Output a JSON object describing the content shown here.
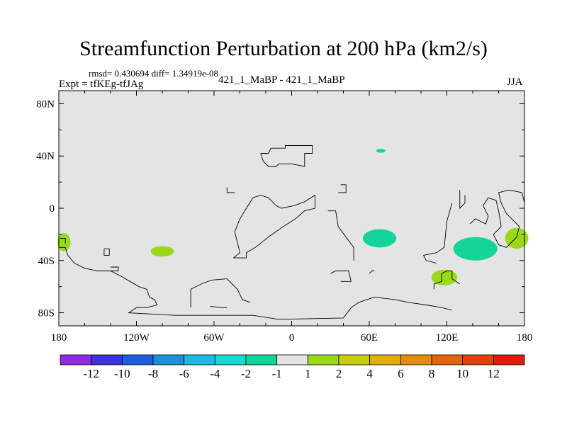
{
  "chart_data": {
    "type": "heatmap",
    "title": "Streamfunction Perturbation at 200 hPa (km2/s)",
    "stats_line": "rmsd= 0.430694 diff= 1.34919e-08",
    "experiment": "Expt = tfKEg-tfJAg",
    "center_label": "421_1_MaBP - 421_1_MaBP",
    "season": "JJA",
    "xlim": [
      -180,
      180
    ],
    "ylim": [
      -90,
      90
    ],
    "x_ticks": [
      {
        "value": -180,
        "label": "180"
      },
      {
        "value": -120,
        "label": "120W"
      },
      {
        "value": -60,
        "label": "60W"
      },
      {
        "value": 0,
        "label": "0"
      },
      {
        "value": 60,
        "label": "60E"
      },
      {
        "value": 120,
        "label": "120E"
      },
      {
        "value": 180,
        "label": "180"
      }
    ],
    "y_ticks": [
      {
        "value": 80,
        "label": "80N"
      },
      {
        "value": 40,
        "label": "40N"
      },
      {
        "value": 0,
        "label": "0"
      },
      {
        "value": -40,
        "label": "40S"
      },
      {
        "value": -80,
        "label": "80S"
      }
    ],
    "colorbar": {
      "colors": [
        "#8f2be0",
        "#3c33dc",
        "#1b5fde",
        "#1d8fdf",
        "#1db9e3",
        "#1ad7d3",
        "#14d49a",
        "#e4e4e4",
        "#9ad81c",
        "#c6cd14",
        "#e1ae0c",
        "#e58c0a",
        "#e26509",
        "#df4208",
        "#e01c0a"
      ],
      "labels": [
        "-12",
        "-10",
        "-8",
        "-6",
        "-4",
        "-2",
        "-1",
        "1",
        "2",
        "4",
        "6",
        "8",
        "10",
        "12"
      ]
    },
    "anomalies": [
      {
        "lon": -176,
        "lat": -26,
        "rlon": 5,
        "rlat": 7,
        "color": "#9ad81c"
      },
      {
        "lon": -100,
        "lat": -33,
        "rlon": 9,
        "rlat": 4,
        "color": "#9ad81c"
      },
      {
        "lon": 69,
        "lat": 44,
        "rlon": 3.5,
        "rlat": 1.5,
        "color": "#14d49a"
      },
      {
        "lon": 68,
        "lat": -23,
        "rlon": 13,
        "rlat": 7,
        "color": "#14d49a"
      },
      {
        "lon": 118,
        "lat": -53,
        "rlon": 10,
        "rlat": 6,
        "color": "#9ad81c"
      },
      {
        "lon": 142,
        "lat": -31,
        "rlon": 17,
        "rlat": 9,
        "color": "#14d49a"
      },
      {
        "lon": 174,
        "lat": -23,
        "rlon": 9,
        "rlat": 8,
        "color": "#9ad81c"
      }
    ],
    "coastlines": [
      [
        [
          -180,
          -30
        ],
        [
          -175,
          -30
        ],
        [
          -173,
          -36
        ],
        [
          -168,
          -42
        ],
        [
          -160,
          -46
        ],
        [
          -150,
          -48
        ],
        [
          -140,
          -48
        ],
        [
          -132,
          -52
        ],
        [
          -125,
          -56
        ],
        [
          -118,
          -60
        ],
        [
          -112,
          -62
        ],
        [
          -110,
          -68
        ],
        [
          -106,
          -70
        ],
        [
          -104,
          -74
        ],
        [
          -112,
          -76
        ],
        [
          -120,
          -76
        ],
        [
          -126,
          -80
        ],
        [
          -90,
          -82
        ],
        [
          -30,
          -82
        ],
        [
          -10,
          -85
        ],
        [
          40,
          -84
        ],
        [
          46,
          -76
        ],
        [
          52,
          -72
        ],
        [
          64,
          -68
        ],
        [
          80,
          -70
        ],
        [
          90,
          -72
        ],
        [
          104,
          -74
        ],
        [
          116,
          -76
        ],
        [
          124,
          -78
        ]
      ],
      [
        [
          -179,
          -23
        ],
        [
          -175,
          -23
        ],
        [
          -175,
          -27
        ]
      ],
      [
        [
          -145,
          -31
        ],
        [
          -141,
          -31
        ],
        [
          -141,
          -36
        ],
        [
          -145,
          -36
        ],
        [
          -145,
          -31
        ]
      ],
      [
        [
          -140,
          -45
        ],
        [
          -134,
          -45
        ],
        [
          -134,
          -48
        ],
        [
          -140,
          -48
        ]
      ],
      [
        [
          -78,
          -76
        ],
        [
          -78,
          -62
        ],
        [
          -70,
          -58
        ],
        [
          -62,
          -55
        ],
        [
          -50,
          -54
        ],
        [
          -42,
          -62
        ],
        [
          -38,
          -70
        ],
        [
          -32,
          -72
        ]
      ],
      [
        [
          -63,
          -75
        ],
        [
          -55,
          -76
        ],
        [
          -50,
          -76
        ]
      ],
      [
        [
          -45,
          -38
        ],
        [
          -35,
          -38
        ],
        [
          -35,
          -34
        ],
        [
          -28,
          -30
        ],
        [
          -18,
          -22
        ],
        [
          -8,
          -15
        ],
        [
          3,
          -8
        ],
        [
          10,
          -2
        ],
        [
          18,
          0
        ],
        [
          18,
          10
        ],
        [
          10,
          5
        ],
        [
          2,
          2
        ],
        [
          -8,
          0
        ],
        [
          -12,
          2
        ],
        [
          -18,
          8
        ],
        [
          -24,
          10
        ],
        [
          -30,
          8
        ],
        [
          -35,
          0
        ],
        [
          -40,
          -8
        ],
        [
          -44,
          -18
        ],
        [
          -40,
          -34
        ],
        [
          -45,
          -38
        ]
      ],
      [
        [
          -24,
          42
        ],
        [
          -18,
          42
        ],
        [
          -16,
          46
        ],
        [
          -5,
          46
        ],
        [
          -5,
          48
        ],
        [
          16,
          48
        ],
        [
          16,
          42
        ],
        [
          10,
          42
        ],
        [
          10,
          32
        ],
        [
          0,
          34
        ],
        [
          -10,
          34
        ],
        [
          -12,
          32
        ],
        [
          -18,
          32
        ],
        [
          -22,
          36
        ],
        [
          -24,
          42
        ]
      ],
      [
        [
          28,
          -2
        ],
        [
          34,
          -2
        ],
        [
          36,
          -14
        ],
        [
          42,
          -22
        ],
        [
          48,
          -30
        ],
        [
          48,
          -40
        ]
      ],
      [
        [
          30,
          -50
        ],
        [
          34,
          -48
        ],
        [
          44,
          -48
        ],
        [
          46,
          -56
        ],
        [
          38,
          -56
        ]
      ],
      [
        [
          64,
          -48
        ],
        [
          62,
          -48
        ],
        [
          60,
          -50
        ]
      ],
      [
        [
          -50,
          16
        ],
        [
          -50,
          12
        ],
        [
          -44,
          12
        ]
      ],
      [
        [
          36,
          12
        ],
        [
          42,
          12
        ],
        [
          42,
          18
        ],
        [
          38,
          18
        ]
      ],
      [
        [
          110,
          -62
        ],
        [
          110,
          -58
        ],
        [
          116,
          -56
        ],
        [
          116,
          -50
        ],
        [
          120,
          -48
        ],
        [
          124,
          -48
        ],
        [
          124,
          -54
        ],
        [
          130,
          -58
        ]
      ],
      [
        [
          112,
          -42
        ],
        [
          104,
          -40
        ],
        [
          102,
          -36
        ],
        [
          112,
          -34
        ],
        [
          118,
          -30
        ],
        [
          120,
          -10
        ],
        [
          124,
          4
        ]
      ],
      [
        [
          130,
          14
        ],
        [
          130,
          0
        ],
        [
          134,
          4
        ],
        [
          134,
          10
        ]
      ],
      [
        [
          138,
          -12
        ],
        [
          142,
          -8
        ],
        [
          150,
          -12
        ],
        [
          152,
          -6
        ],
        [
          148,
          2
        ],
        [
          152,
          8
        ],
        [
          158,
          6
        ],
        [
          160,
          -2
        ],
        [
          162,
          -14
        ],
        [
          156,
          -20
        ],
        [
          160,
          -28
        ],
        [
          166,
          -30
        ],
        [
          170,
          -26
        ],
        [
          174,
          -22
        ],
        [
          176,
          -14
        ],
        [
          166,
          -4
        ],
        [
          162,
          4
        ],
        [
          160,
          12
        ],
        [
          168,
          14
        ],
        [
          178,
          12
        ],
        [
          180,
          4
        ]
      ]
    ]
  }
}
